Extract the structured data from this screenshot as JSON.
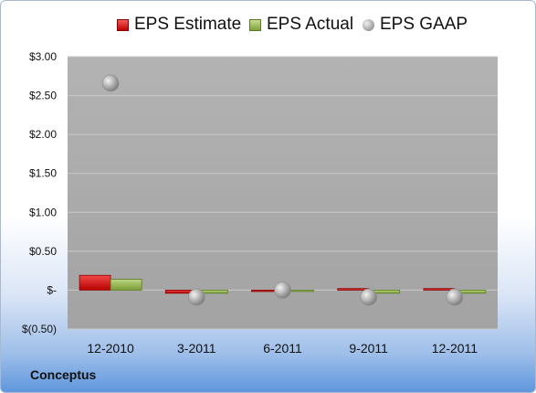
{
  "company": "Conceptus",
  "legend": {
    "estimate": "EPS Estimate",
    "actual": "EPS Actual",
    "gaap": "EPS GAAP"
  },
  "colors": {
    "estimate": "#c00000",
    "actual": "#8db04a",
    "gaap": "#a6a6a6",
    "plot_bg": "#a6a6a6"
  },
  "chart_data": {
    "type": "bar",
    "categories": [
      "12-2010",
      "3-2011",
      "6-2011",
      "9-2011",
      "12-2011"
    ],
    "series": [
      {
        "name": "EPS Estimate",
        "type": "bar",
        "values": [
          0.19,
          -0.04,
          0.0,
          0.02,
          0.02
        ]
      },
      {
        "name": "EPS Actual",
        "type": "bar",
        "values": [
          0.14,
          -0.04,
          0.0,
          -0.04,
          -0.04
        ]
      },
      {
        "name": "EPS GAAP",
        "type": "scatter",
        "values": [
          2.66,
          -0.09,
          0.0,
          -0.09,
          -0.09
        ]
      }
    ],
    "yticks": [
      -0.5,
      0,
      0.5,
      1.0,
      1.5,
      2.0,
      2.5,
      3.0
    ],
    "ytick_labels": [
      "$(0.50)",
      "$-",
      "$0.50",
      "$1.00",
      "$1.50",
      "$2.00",
      "$2.50",
      "$3.00"
    ],
    "ylim": [
      -0.5,
      3.0
    ],
    "grid": true,
    "legend_position": "top"
  }
}
